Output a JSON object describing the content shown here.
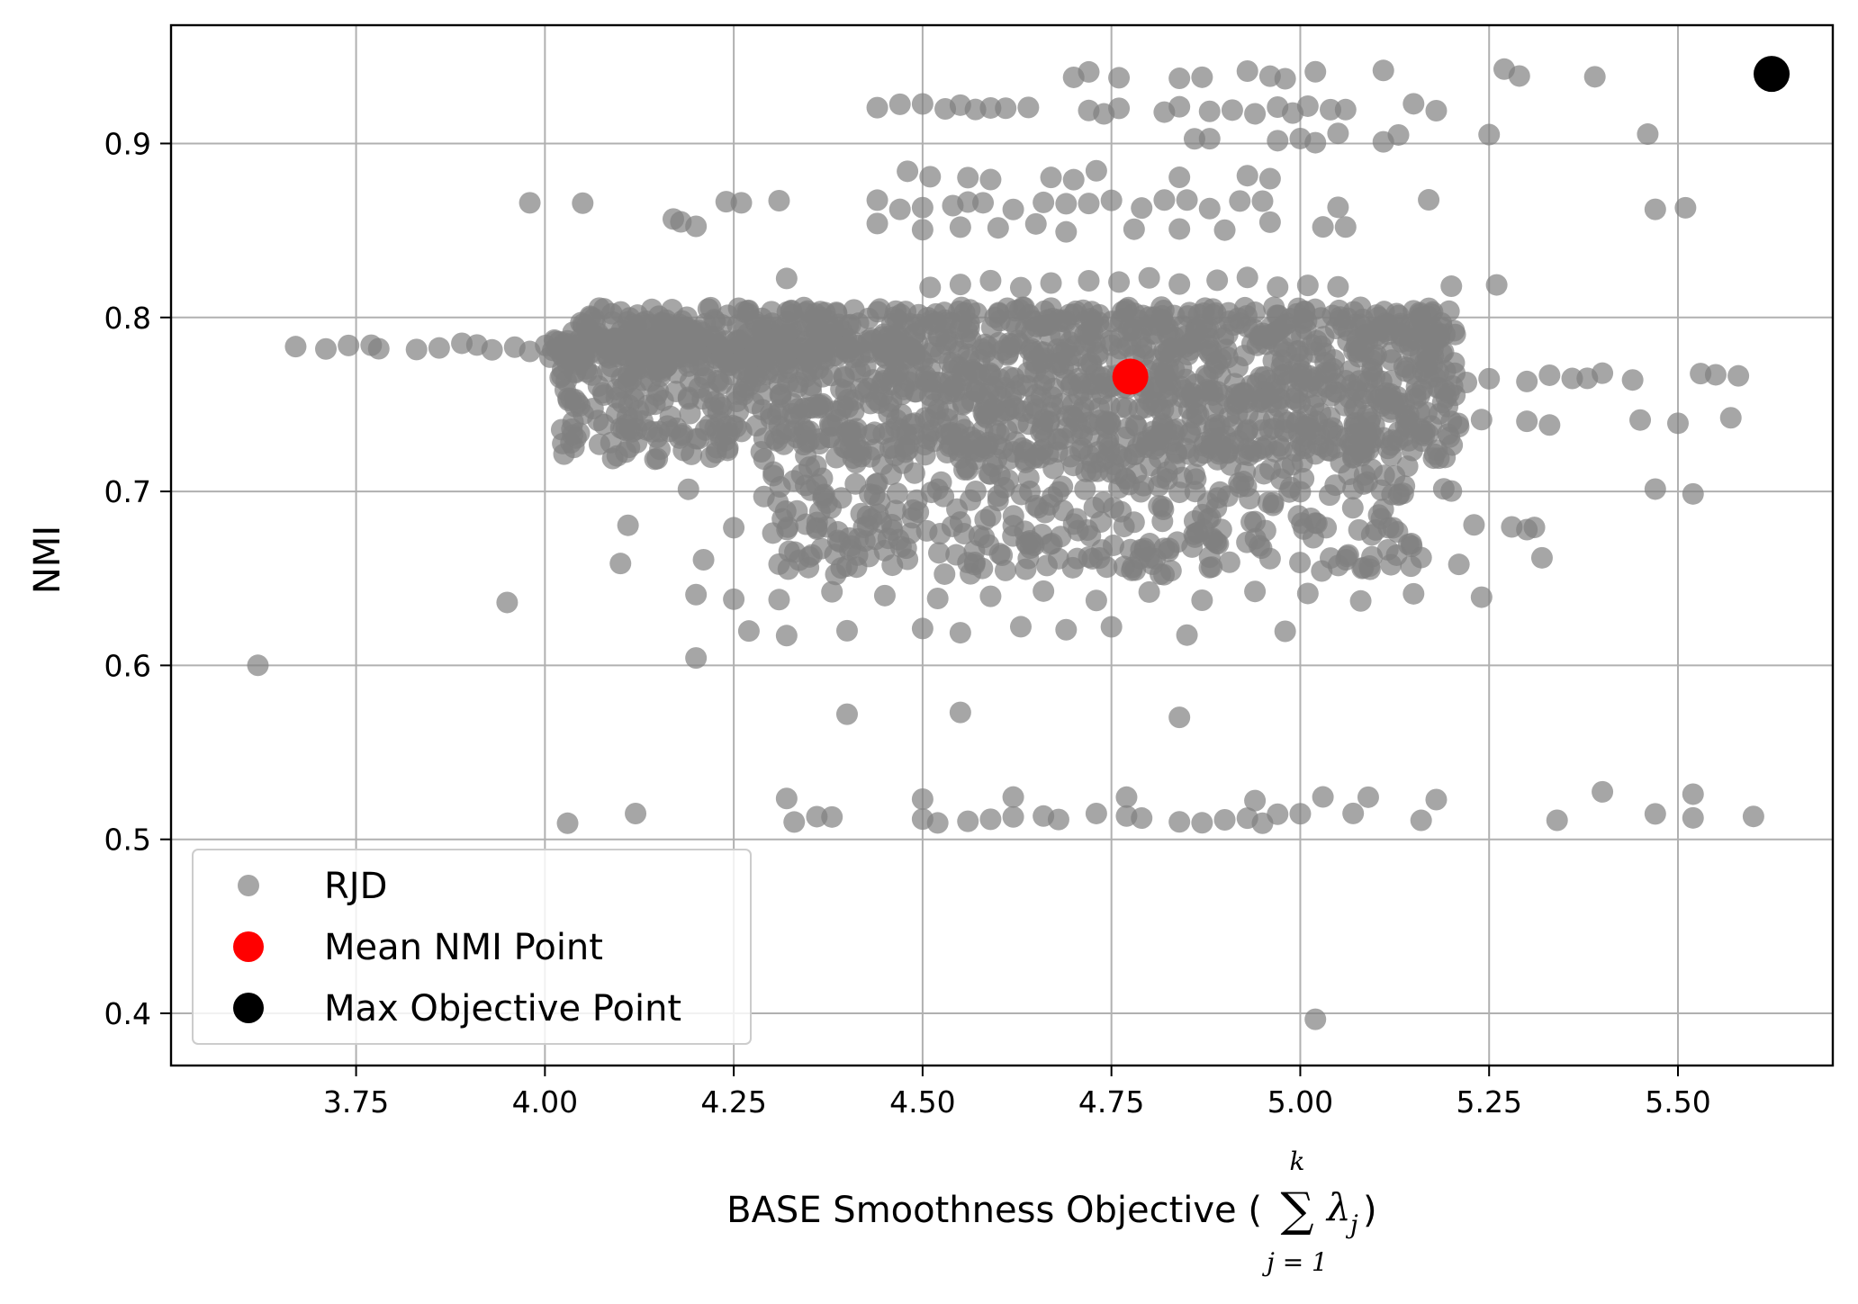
{
  "chart_data": {
    "type": "scatter",
    "xlabel": "BASE Smoothness Objective (",
    "xlabel_math": {
      "sum_top": "k",
      "sum_bottom": "j = 1",
      "term": "λ",
      "subscript": "j",
      "close": ")"
    },
    "ylabel": "NMI",
    "xlim": [
      3.505,
      5.705
    ],
    "ylim": [
      0.37,
      0.968
    ],
    "xticks": [
      "3.75",
      "4.00",
      "4.25",
      "4.50",
      "4.75",
      "5.00",
      "5.25",
      "5.50"
    ],
    "yticks": [
      "0.4",
      "0.5",
      "0.6",
      "0.7",
      "0.8",
      "0.9"
    ],
    "grid": true,
    "legend_position": "lower-left",
    "colors": {
      "rjd": "#808080",
      "mean": "#ff0000",
      "max": "#000000"
    },
    "series": [
      {
        "name": "RJD",
        "bands": [
          {
            "y": 0.92,
            "x": [
              4.44,
              4.47,
              4.5,
              4.53,
              4.55,
              4.57,
              4.59,
              4.61,
              4.64,
              4.72,
              4.74,
              4.76,
              4.82,
              4.84,
              4.88,
              4.91,
              4.94,
              4.97,
              4.99,
              5.01,
              5.04,
              5.06,
              5.15,
              5.18
            ]
          },
          {
            "y": 0.94,
            "x": [
              4.7,
              4.72,
              4.76,
              4.84,
              4.87,
              4.93,
              4.96,
              4.98,
              5.02,
              5.11,
              5.27,
              5.29,
              5.39,
              5.63
            ]
          },
          {
            "y": 0.903,
            "x": [
              4.86,
              4.88,
              4.97,
              5.0,
              5.02,
              5.05,
              5.11,
              5.13,
              5.25,
              5.46
            ]
          },
          {
            "y": 0.865,
            "x": [
              3.98,
              4.05,
              4.24,
              4.26,
              4.31,
              4.44,
              4.47,
              4.5,
              4.54,
              4.56,
              4.58,
              4.62,
              4.66,
              4.69,
              4.72,
              4.75,
              4.79,
              4.82,
              4.85,
              4.88,
              4.92,
              4.95,
              5.05,
              5.17,
              5.47,
              5.51
            ]
          },
          {
            "y": 0.852,
            "x": [
              4.18,
              4.2,
              4.44,
              4.5,
              4.55,
              4.6,
              4.65,
              4.69,
              4.78,
              4.84,
              4.9,
              4.96,
              5.03,
              5.06
            ]
          },
          {
            "y": 0.882,
            "x": [
              4.48,
              4.51,
              4.56,
              4.59,
              4.67,
              4.7,
              4.73,
              4.84,
              4.93,
              4.96
            ]
          },
          {
            "y": 0.82,
            "x": [
              4.32,
              4.51,
              4.55,
              4.59,
              4.63,
              4.67,
              4.72,
              4.76,
              4.8,
              4.84,
              4.89,
              4.93,
              4.97,
              5.01,
              5.05,
              5.2,
              5.26
            ]
          },
          {
            "y": 0.783,
            "x": [
              3.67,
              3.71,
              3.74,
              3.77,
              3.78,
              3.83,
              3.86,
              3.89,
              3.91,
              3.93,
              3.96,
              3.98
            ]
          },
          {
            "y": 0.765,
            "x": [
              4.11,
              4.14,
              4.23,
              4.27,
              5.22,
              5.25,
              5.3,
              5.33,
              5.36,
              5.38,
              5.4,
              5.44,
              5.53,
              5.55,
              5.58
            ]
          },
          {
            "y": 0.74,
            "x": [
              4.28,
              4.31,
              5.2,
              5.24,
              5.3,
              5.33,
              5.45,
              5.5,
              5.57
            ]
          },
          {
            "y": 0.7,
            "x": [
              4.19,
              4.29,
              4.37,
              4.43,
              4.52,
              4.6,
              4.68,
              4.76,
              4.84,
              4.92,
              5.0,
              5.07,
              5.13,
              5.19,
              5.2,
              5.47,
              5.52
            ]
          },
          {
            "y": 0.68,
            "x": [
              4.11,
              4.25,
              4.36,
              4.46,
              4.55,
              4.62,
              4.7,
              4.78,
              4.86,
              4.94,
              5.02,
              5.1,
              5.23,
              5.28,
              5.3,
              5.31
            ]
          },
          {
            "y": 0.66,
            "x": [
              4.1,
              4.21,
              4.31,
              4.35,
              4.4,
              4.48,
              4.56,
              4.64,
              4.72,
              4.8,
              4.88,
              4.96,
              5.04,
              5.12,
              5.16,
              5.21,
              5.32
            ]
          },
          {
            "y": 0.64,
            "x": [
              4.2,
              4.25,
              4.31,
              4.38,
              4.45,
              4.52,
              4.59,
              4.66,
              4.73,
              4.8,
              4.87,
              4.94,
              5.01,
              5.08,
              5.15,
              5.24
            ]
          },
          {
            "y": 0.62,
            "x": [
              4.27,
              4.32,
              4.4,
              4.5,
              4.55,
              4.63,
              4.69,
              4.75,
              4.85,
              4.98
            ]
          },
          {
            "y": 0.512,
            "x": [
              4.03,
              4.12,
              4.33,
              4.36,
              4.38,
              4.5,
              4.52,
              4.56,
              4.59,
              4.62,
              4.66,
              4.68,
              4.73,
              4.77,
              4.79,
              4.84,
              4.87,
              4.9,
              4.93,
              4.95,
              4.97,
              5.0,
              5.07,
              5.16,
              5.34,
              5.47,
              5.52,
              5.6
            ]
          },
          {
            "y": 0.525,
            "x": [
              4.32,
              4.5,
              4.62,
              4.77,
              4.94,
              5.03,
              5.09,
              5.18,
              5.4,
              5.52
            ]
          },
          {
            "y": 0.603,
            "x": [
              3.62,
              4.2
            ]
          },
          {
            "y": 0.57,
            "x": [
              4.4,
              4.55,
              4.84
            ]
          },
          {
            "y": 0.398,
            "x": [
              5.02
            ]
          },
          {
            "y": 0.638,
            "x": [
              3.95
            ]
          },
          {
            "y": 0.859,
            "x": [
              4.17
            ]
          }
        ],
        "dense_core": {
          "x_range": [
            4.02,
            5.21
          ],
          "y_range": [
            0.718,
            0.806
          ]
        },
        "dense_band_mid": {
          "x_range": [
            4.3,
            5.15
          ],
          "y_range": [
            0.652,
            0.74
          ]
        }
      },
      {
        "name": "Mean NMI Point",
        "points": [
          {
            "x": 4.775,
            "y": 0.766
          }
        ]
      },
      {
        "name": "Max Objective Point",
        "points": [
          {
            "x": 5.624,
            "y": 0.94
          }
        ]
      }
    ]
  }
}
